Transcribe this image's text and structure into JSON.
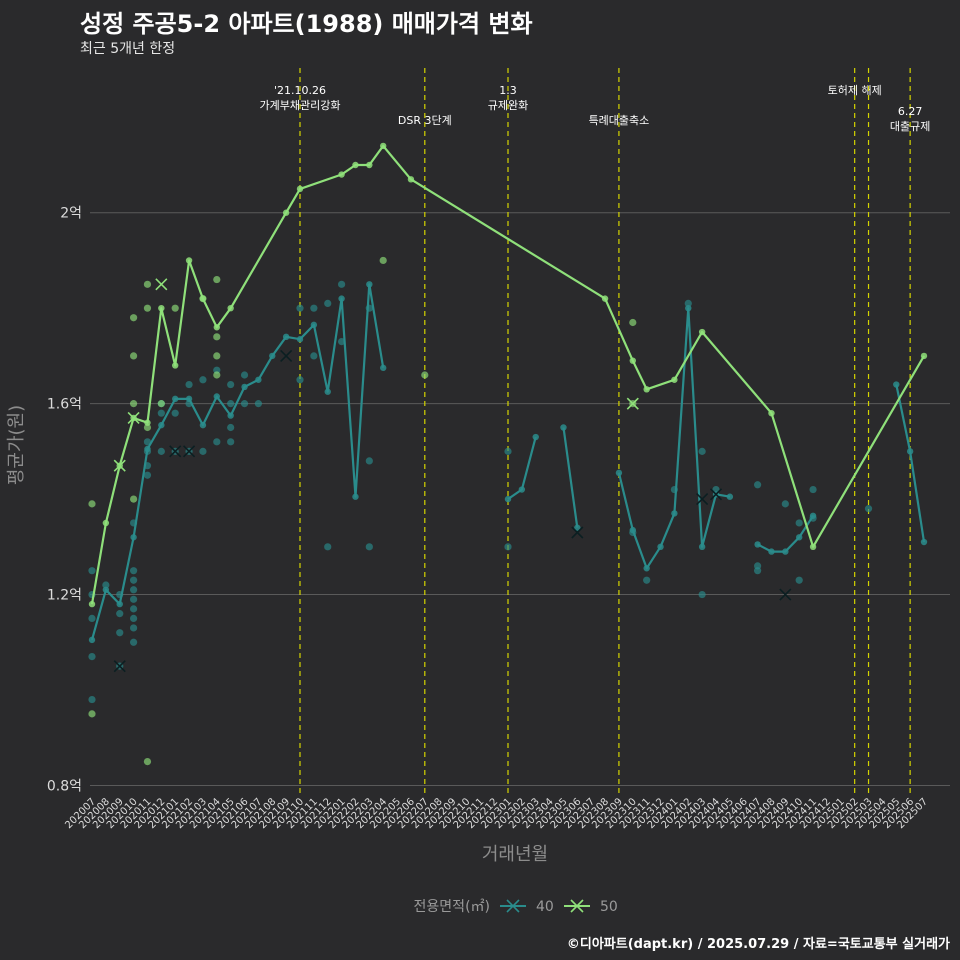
{
  "header": {
    "title": "성정 주공5-2 아파트(1988) 매매가격 변화",
    "subtitle": "최근 5개년 한정"
  },
  "caption": "©디아파트(dapt.kr) / 2025.07.29 / 자료=국토교통부 실거래가",
  "chart_data": {
    "type": "line",
    "xlabel": "거래년월",
    "ylabel": "평균가(원)",
    "ylim": [
      0.78,
      2.32
    ],
    "yticks": [
      {
        "value": 0.8,
        "label": "0.8억"
      },
      {
        "value": 1.2,
        "label": "1.2억"
      },
      {
        "value": 1.6,
        "label": "1.6억"
      },
      {
        "value": 2.0,
        "label": "2억"
      }
    ],
    "x": [
      "202007",
      "202008",
      "202009",
      "202010",
      "202011",
      "202012",
      "202101",
      "202102",
      "202103",
      "202104",
      "202105",
      "202106",
      "202107",
      "202108",
      "202109",
      "202110",
      "202111",
      "202112",
      "202201",
      "202202",
      "202203",
      "202204",
      "202205",
      "202206",
      "202207",
      "202208",
      "202209",
      "202210",
      "202211",
      "202212",
      "202301",
      "202302",
      "202303",
      "202304",
      "202305",
      "202306",
      "202307",
      "202308",
      "202309",
      "202310",
      "202311",
      "202312",
      "202401",
      "202402",
      "202403",
      "202404",
      "202405",
      "202406",
      "202407",
      "202408",
      "202409",
      "202410",
      "202411",
      "202412",
      "202501",
      "202502",
      "202503",
      "202504",
      "202505",
      "202506",
      "202507"
    ],
    "grid": true,
    "legend": {
      "title": "전용면적(㎡)",
      "position": "bottom"
    },
    "series": [
      {
        "name": "40",
        "color": "#2a8c8c",
        "line": [
          [
            0,
            1.105
          ],
          [
            1,
            1.21
          ],
          [
            2,
            1.18
          ],
          [
            3,
            1.32
          ],
          [
            4,
            1.505
          ],
          [
            5,
            1.555
          ],
          [
            6,
            1.61
          ],
          [
            7,
            1.61
          ],
          [
            8,
            1.555
          ],
          [
            9,
            1.615
          ],
          [
            10,
            1.575
          ],
          [
            11,
            1.635
          ],
          [
            12,
            1.65
          ],
          [
            13,
            1.7
          ],
          [
            14,
            1.74
          ],
          [
            15,
            1.735
          ],
          [
            16,
            1.765
          ],
          [
            17,
            1.625
          ],
          [
            18,
            1.82
          ],
          [
            19,
            1.405
          ],
          [
            20,
            1.85
          ],
          [
            21,
            1.675
          ]
        ],
        "line2": [
          [
            30,
            1.4
          ],
          [
            31,
            1.42
          ],
          [
            32,
            1.53
          ]
        ],
        "line3": [
          [
            34,
            1.55
          ],
          [
            35,
            1.34
          ]
        ],
        "line4": [
          [
            38,
            1.455
          ],
          [
            39,
            1.335
          ],
          [
            40,
            1.255
          ],
          [
            41,
            1.3
          ],
          [
            42,
            1.37
          ],
          [
            43,
            1.8
          ],
          [
            44,
            1.3
          ],
          [
            45,
            1.41
          ],
          [
            46,
            1.405
          ]
        ],
        "line5": [
          [
            48,
            1.305
          ],
          [
            49,
            1.29
          ],
          [
            50,
            1.29
          ],
          [
            51,
            1.32
          ],
          [
            52,
            1.365
          ]
        ],
        "line6": [
          [
            58,
            1.64
          ],
          [
            59,
            1.5
          ],
          [
            60,
            1.31
          ]
        ],
        "points": [
          [
            0,
            1.25
          ],
          [
            0,
            1.2
          ],
          [
            0,
            1.15
          ],
          [
            0,
            1.07
          ],
          [
            0,
            0.98
          ],
          [
            1,
            1.22
          ],
          [
            2,
            1.05
          ],
          [
            2,
            1.12
          ],
          [
            2,
            1.16
          ],
          [
            2,
            1.2
          ],
          [
            3,
            1.1
          ],
          [
            3,
            1.13
          ],
          [
            3,
            1.15
          ],
          [
            3,
            1.17
          ],
          [
            3,
            1.19
          ],
          [
            3,
            1.21
          ],
          [
            3,
            1.23
          ],
          [
            3,
            1.25
          ],
          [
            3,
            1.35
          ],
          [
            4,
            1.45
          ],
          [
            4,
            1.47
          ],
          [
            4,
            1.5
          ],
          [
            4,
            1.52
          ],
          [
            5,
            1.5
          ],
          [
            5,
            1.58
          ],
          [
            5,
            1.6
          ],
          [
            6,
            1.5
          ],
          [
            6,
            1.58
          ],
          [
            7,
            1.5
          ],
          [
            7,
            1.6
          ],
          [
            7,
            1.64
          ],
          [
            8,
            1.5
          ],
          [
            8,
            1.65
          ],
          [
            9,
            1.52
          ],
          [
            9,
            1.67
          ],
          [
            10,
            1.52
          ],
          [
            10,
            1.55
          ],
          [
            10,
            1.6
          ],
          [
            10,
            1.64
          ],
          [
            11,
            1.6
          ],
          [
            11,
            1.66
          ],
          [
            12,
            1.6
          ],
          [
            15,
            1.8
          ],
          [
            15,
            1.65
          ],
          [
            16,
            1.7
          ],
          [
            16,
            1.8
          ],
          [
            17,
            1.3
          ],
          [
            17,
            1.81
          ],
          [
            18,
            1.85
          ],
          [
            18,
            1.73
          ],
          [
            20,
            1.3
          ],
          [
            20,
            1.48
          ],
          [
            20,
            1.8
          ],
          [
            30,
            1.5
          ],
          [
            30,
            1.3
          ],
          [
            39,
            1.33
          ],
          [
            40,
            1.23
          ],
          [
            42,
            1.42
          ],
          [
            43,
            1.81
          ],
          [
            44,
            1.5
          ],
          [
            44,
            1.2
          ],
          [
            45,
            1.42
          ],
          [
            48,
            1.43
          ],
          [
            48,
            1.26
          ],
          [
            48,
            1.25
          ],
          [
            50,
            1.39
          ],
          [
            51,
            1.23
          ],
          [
            51,
            1.35
          ],
          [
            52,
            1.42
          ],
          [
            52,
            1.36
          ],
          [
            56,
            1.38
          ]
        ],
        "cancelled": [
          [
            2,
            1.05
          ],
          [
            6,
            1.5
          ],
          [
            7,
            1.5
          ],
          [
            14,
            1.7
          ],
          [
            35,
            1.33
          ],
          [
            44,
            1.4
          ],
          [
            45,
            1.41
          ],
          [
            50,
            1.2
          ]
        ]
      },
      {
        "name": "50",
        "color": "#8fe07a",
        "line": [
          [
            0,
            1.18
          ],
          [
            1,
            1.35
          ],
          [
            2,
            1.47
          ],
          [
            3,
            1.57
          ],
          [
            4,
            1.56
          ],
          [
            5,
            1.8
          ],
          [
            6,
            1.68
          ],
          [
            7,
            1.9
          ],
          [
            8,
            1.82
          ],
          [
            9,
            1.76
          ],
          [
            10,
            1.8
          ],
          [
            14,
            2.0
          ],
          [
            15,
            2.05
          ],
          [
            18,
            2.08
          ],
          [
            19,
            2.1
          ],
          [
            20,
            2.1
          ],
          [
            21,
            2.14
          ],
          [
            23,
            2.07
          ],
          [
            37,
            1.82
          ],
          [
            39,
            1.69
          ],
          [
            40,
            1.63
          ],
          [
            42,
            1.65
          ],
          [
            44,
            1.75
          ],
          [
            49,
            1.58
          ],
          [
            52,
            1.3
          ],
          [
            60,
            1.7
          ]
        ],
        "points": [
          [
            0,
            1.39
          ],
          [
            0,
            0.95
          ],
          [
            3,
            1.78
          ],
          [
            3,
            1.7
          ],
          [
            3,
            1.6
          ],
          [
            3,
            1.4
          ],
          [
            4,
            1.85
          ],
          [
            4,
            1.8
          ],
          [
            4,
            1.55
          ],
          [
            4,
            0.85
          ],
          [
            5,
            1.6
          ],
          [
            6,
            1.8
          ],
          [
            8,
            1.82
          ],
          [
            9,
            1.86
          ],
          [
            9,
            1.74
          ],
          [
            9,
            1.7
          ],
          [
            9,
            1.66
          ],
          [
            21,
            1.9
          ],
          [
            24,
            1.66
          ],
          [
            39,
            1.77
          ],
          [
            39,
            1.6
          ]
        ],
        "cancelled": [
          [
            2,
            1.47
          ],
          [
            3,
            1.57
          ],
          [
            5,
            1.85
          ],
          [
            39,
            1.6
          ]
        ]
      }
    ],
    "annotations": [
      {
        "x": 15,
        "text": [
          "'21.10.26",
          "가계부채관리강화"
        ],
        "row": 0
      },
      {
        "x": 24,
        "text": [
          "DSR 3단계"
        ],
        "row": 1
      },
      {
        "x": 30,
        "text": [
          "1.3",
          "규제완화"
        ],
        "row": 0
      },
      {
        "x": 38,
        "text": [
          "특례대출축소"
        ],
        "row": 1
      },
      {
        "x": 55,
        "text": [
          "토허제 해제"
        ],
        "row": 0
      },
      {
        "x": 56,
        "text": [],
        "row": 0
      },
      {
        "x": 59,
        "text": [
          "6.27",
          "대출규제"
        ],
        "row": 2
      }
    ]
  }
}
